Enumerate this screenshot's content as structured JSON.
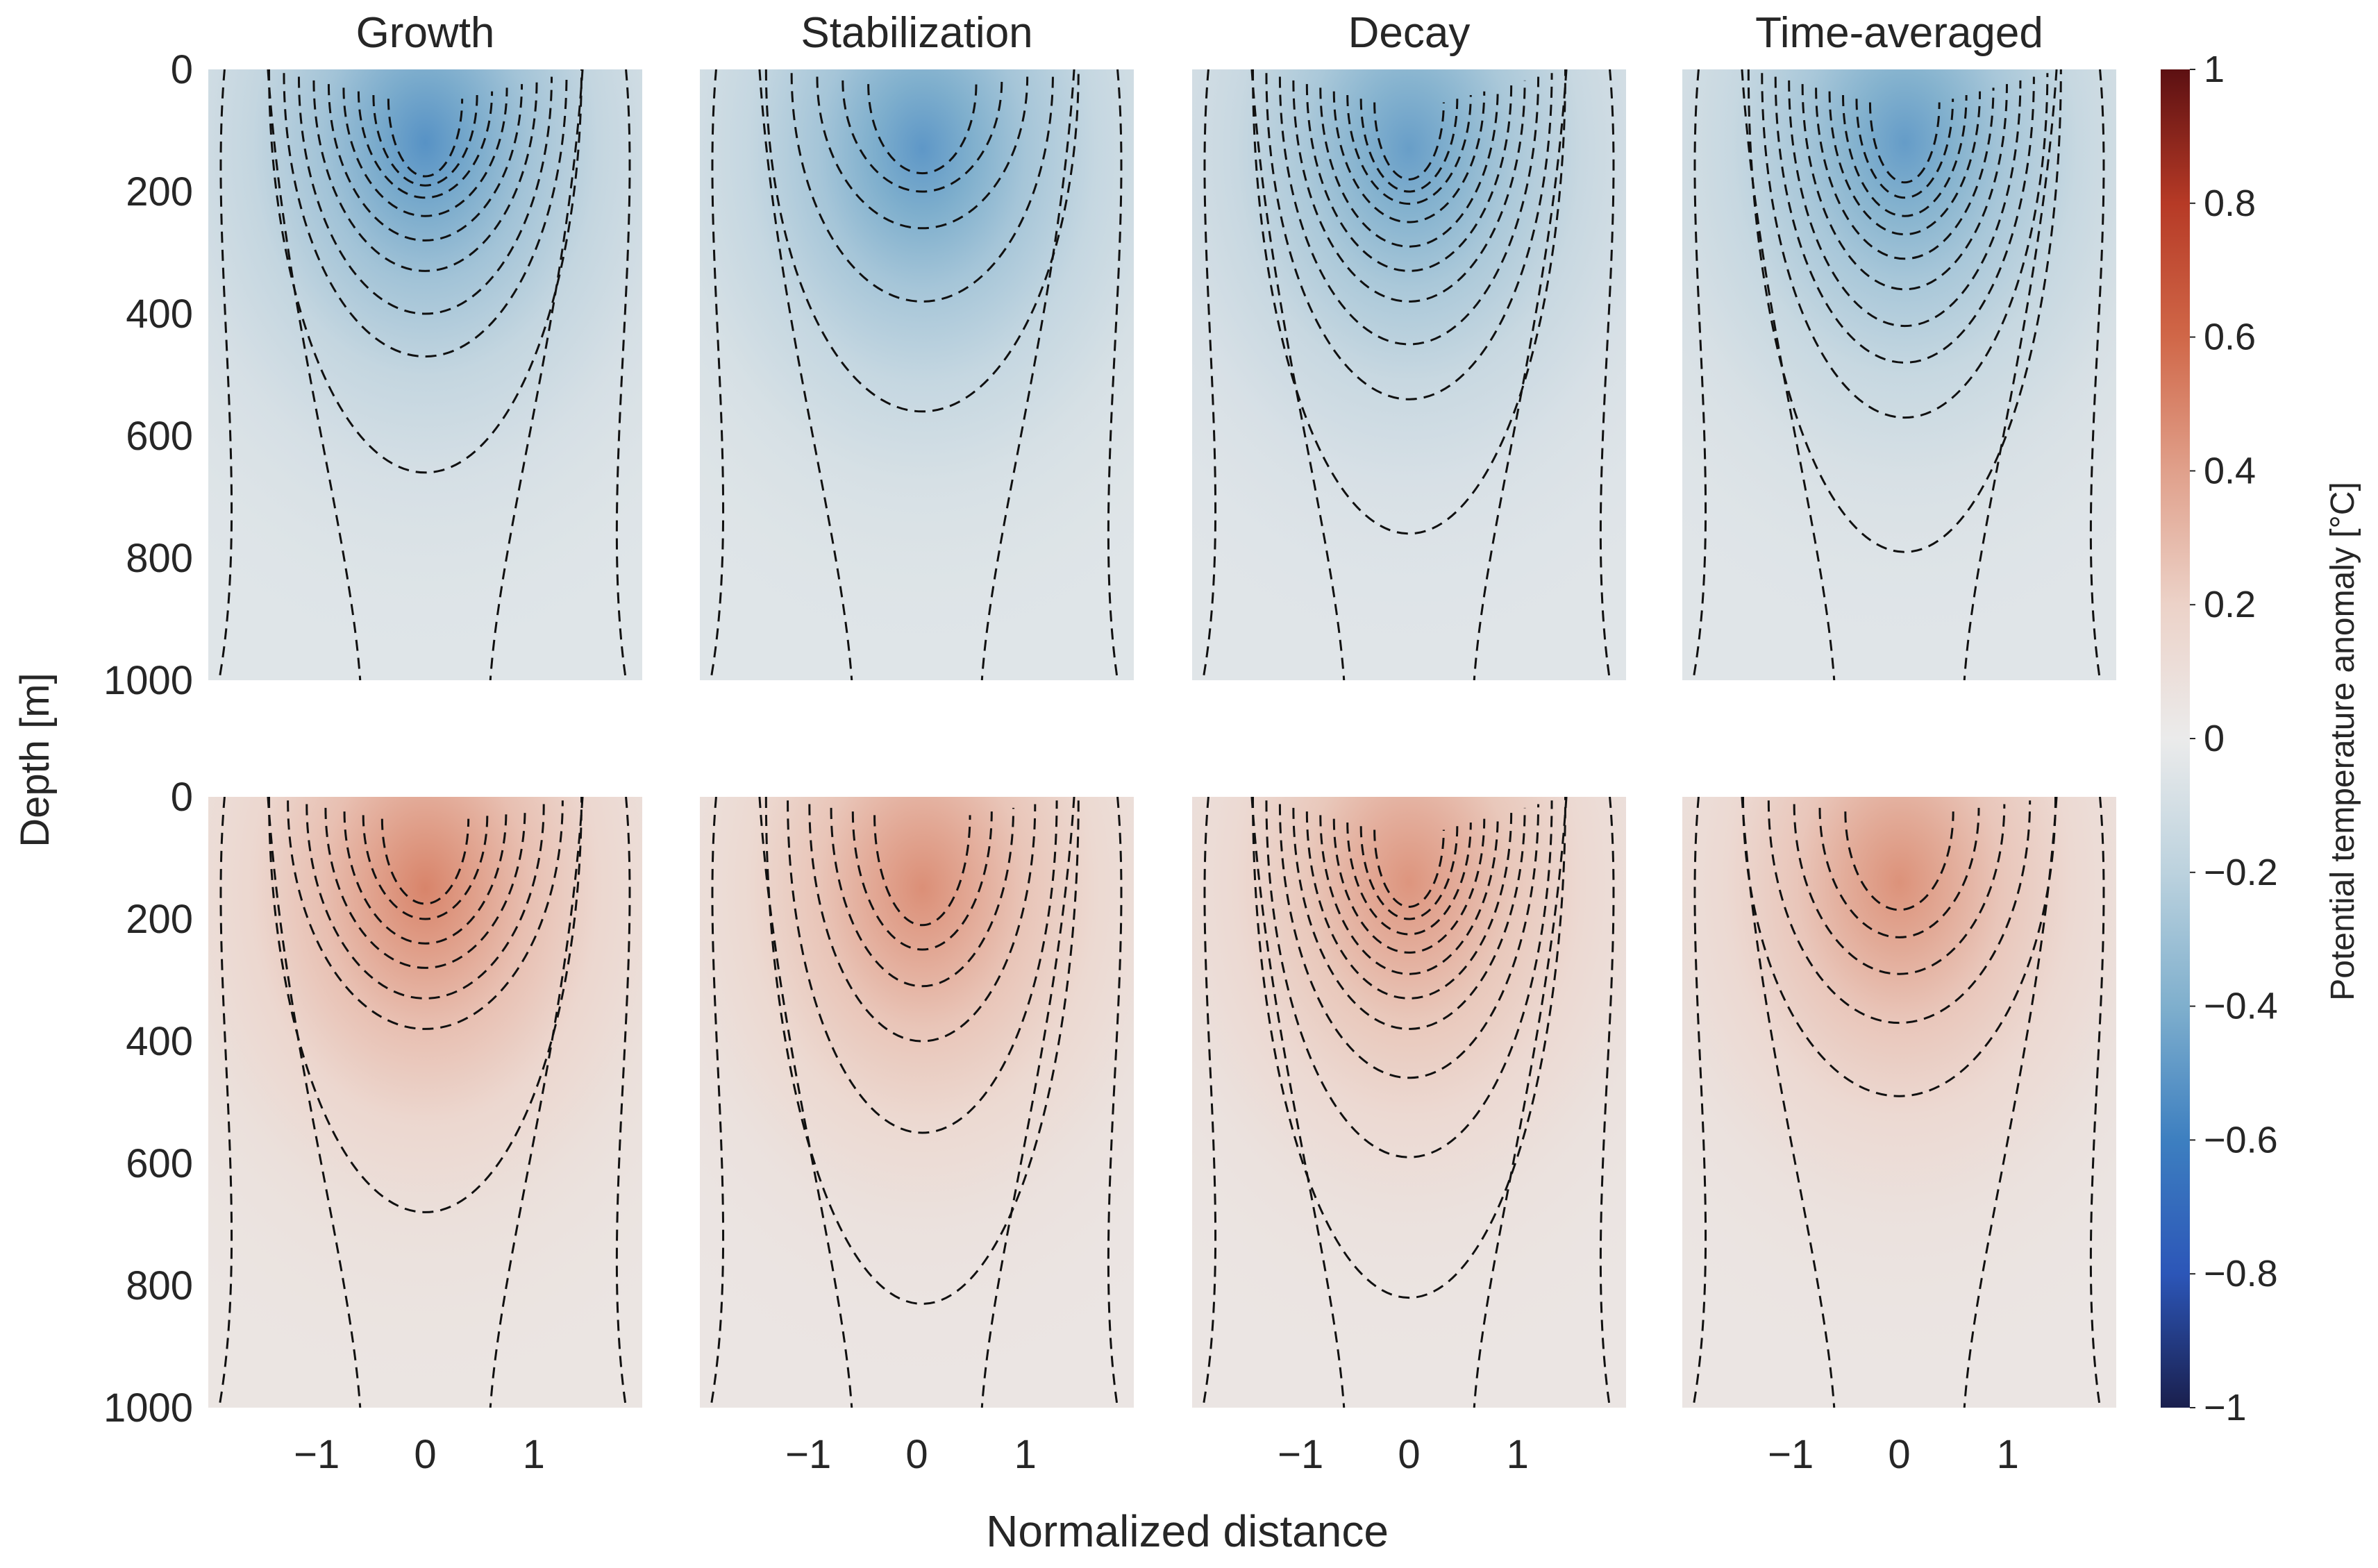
{
  "chart_data": {
    "type": "heatmap",
    "panel_titles": [
      "Growth",
      "Stabilization",
      "Decay",
      "Time-averaged"
    ],
    "xlabel": "Normalized distance",
    "ylabel": "Depth [m]",
    "colorbar_label": "Potential temperature anomaly [°C]",
    "x_range": [
      -2,
      2
    ],
    "y_range": [
      0,
      1000
    ],
    "y_reversed": true,
    "x_ticks": [
      -1,
      0,
      1
    ],
    "x_tick_labels": [
      "−1",
      "0",
      "1"
    ],
    "y_ticks": [
      0,
      200,
      400,
      600,
      800,
      1000
    ],
    "y_tick_labels": [
      "0",
      "200",
      "400",
      "600",
      "800",
      "1000"
    ],
    "colorbar_range": [
      -1,
      1
    ],
    "colorbar_ticks": [
      1,
      0.8,
      0.6,
      0.4,
      0.2,
      0,
      -0.2,
      -0.4,
      -0.6,
      -0.8,
      -1
    ],
    "colorbar_tick_labels": [
      "1",
      "0.8",
      "0.6",
      "0.4",
      "0.2",
      "0",
      "−0.2",
      "−0.4",
      "−0.6",
      "−0.8",
      "−1"
    ],
    "colormap": [
      "#1a1f4d",
      "#2c56b8",
      "#3d7fc0",
      "#7fafcd",
      "#bcd2de",
      "#ebebeb",
      "#ecd2c8",
      "#e0a08b",
      "#d06748",
      "#b63a26",
      "#5c1012"
    ],
    "contour_style": "dashed black",
    "rows": [
      {
        "sign": "cold",
        "panels": [
          {
            "title": "Growth",
            "peak": -0.52,
            "peak_x": 0.0,
            "peak_depth": 120,
            "contour_bottoms": [
              660,
              470,
              400,
              330,
              280,
              240,
              210,
              190,
              175
            ]
          },
          {
            "title": "Stabilization",
            "peak": -0.5,
            "peak_x": 0.05,
            "peak_depth": 130,
            "contour_bottoms": [
              560,
              380,
              260,
              200,
              170
            ]
          },
          {
            "title": "Decay",
            "peak": -0.47,
            "peak_x": 0.0,
            "peak_depth": 130,
            "contour_bottoms": [
              760,
              540,
              450,
              380,
              330,
              290,
              250,
              220,
              200,
              180
            ]
          },
          {
            "title": "Time-averaged",
            "peak": -0.48,
            "peak_x": 0.05,
            "peak_depth": 120,
            "contour_bottoms": [
              790,
              570,
              480,
              420,
              360,
              310,
              270,
              240,
              210,
              185
            ]
          }
        ]
      },
      {
        "sign": "warm",
        "panels": [
          {
            "title": "Growth",
            "peak": 0.5,
            "peak_x": 0.0,
            "peak_depth": 150,
            "contour_bottoms": [
              680,
              380,
              330,
              280,
              240,
              200,
              175
            ]
          },
          {
            "title": "Stabilization",
            "peak": 0.46,
            "peak_x": 0.05,
            "peak_depth": 150,
            "contour_bottoms": [
              830,
              550,
              400,
              310,
              250,
              210
            ]
          },
          {
            "title": "Decay",
            "peak": 0.44,
            "peak_x": 0.0,
            "peak_depth": 140,
            "contour_bottoms": [
              820,
              590,
              460,
              380,
              330,
              290,
              255,
              225,
              200,
              180
            ]
          },
          {
            "title": "Time-averaged",
            "peak": 0.45,
            "peak_x": 0.0,
            "peak_depth": 140,
            "contour_bottoms": [
              490,
              370,
              290,
              230,
              185
            ]
          }
        ]
      }
    ]
  }
}
